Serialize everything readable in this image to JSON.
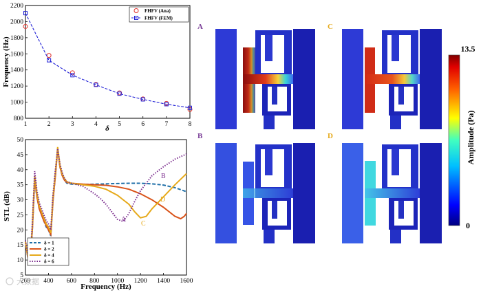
{
  "chart_data": [
    {
      "type": "line",
      "xlabel": "δ",
      "ylabel": "Frequency (Hz)",
      "xlim": [
        1,
        8
      ],
      "ylim": [
        800,
        2200
      ],
      "xticks": [
        1,
        2,
        3,
        4,
        5,
        6,
        7,
        8
      ],
      "yticks": [
        800,
        1000,
        1200,
        1400,
        1600,
        1800,
        2000,
        2200
      ],
      "series": [
        {
          "name": "FHFV (Ana)",
          "x": [
            1,
            2,
            3,
            4,
            5,
            6,
            7,
            8
          ],
          "values": [
            1940,
            1580,
            1365,
            1220,
            1115,
            1040,
            985,
            910
          ],
          "color": "#e0302c",
          "marker": "circle"
        },
        {
          "name": "FHFV (FEM)",
          "x": [
            1,
            2,
            3,
            4,
            5,
            6,
            7,
            8
          ],
          "values": [
            2105,
            1520,
            1335,
            1215,
            1105,
            1035,
            975,
            930
          ],
          "color": "#1f1fd6",
          "marker": "square",
          "dash": true
        }
      ]
    },
    {
      "type": "line",
      "xlabel": "Frequency (Hz)",
      "ylabel": "STL (dB)",
      "xlim": [
        200,
        1600
      ],
      "ylim": [
        5,
        50
      ],
      "xticks": [
        200,
        400,
        600,
        800,
        1000,
        1200,
        1400,
        1600
      ],
      "yticks": [
        5,
        10,
        15,
        20,
        25,
        30,
        35,
        40,
        45,
        50
      ],
      "series": [
        {
          "name": "δ = 1",
          "color": "#1f6fa8",
          "style": "dash",
          "x": [
            200,
            220,
            240,
            260,
            280,
            300,
            320,
            340,
            360,
            380,
            400,
            420,
            440,
            460,
            480,
            500,
            520,
            540,
            560,
            600,
            700,
            800,
            900,
            1000,
            1100,
            1200,
            1300,
            1400,
            1500,
            1600
          ],
          "values": [
            16,
            11,
            9.6,
            20,
            36,
            31,
            27,
            25,
            23,
            21,
            20,
            18,
            30,
            38,
            47,
            41,
            38,
            36.5,
            35.5,
            35.2,
            35.1,
            35.2,
            35.3,
            35.4,
            35.5,
            35.5,
            35.3,
            34.9,
            34,
            32.7
          ]
        },
        {
          "name": "δ = 2",
          "color": "#d95319",
          "style": "solid",
          "x": [
            200,
            220,
            240,
            260,
            280,
            300,
            320,
            340,
            360,
            380,
            400,
            420,
            440,
            460,
            480,
            500,
            520,
            540,
            560,
            600,
            700,
            800,
            900,
            1000,
            1100,
            1200,
            1300,
            1400,
            1500,
            1550,
            1580,
            1600
          ],
          "values": [
            16,
            11,
            9.8,
            20,
            37,
            31,
            27,
            25,
            23,
            21.5,
            20,
            18.5,
            30,
            38,
            47,
            41,
            38,
            36.5,
            35.8,
            35.5,
            35.2,
            35,
            34.8,
            34.3,
            33.5,
            32,
            30,
            27.5,
            24.5,
            23.7,
            24.5,
            25.5
          ]
        },
        {
          "name": "δ = 4",
          "color": "#e6a91a",
          "style": "solid",
          "x": [
            200,
            220,
            240,
            260,
            280,
            300,
            320,
            340,
            360,
            380,
            400,
            420,
            440,
            460,
            480,
            500,
            520,
            540,
            560,
            600,
            700,
            800,
            900,
            1000,
            1050,
            1100,
            1150,
            1200,
            1250,
            1300,
            1400,
            1500,
            1600
          ],
          "values": [
            16,
            11.5,
            9.9,
            21,
            38,
            32,
            28,
            26,
            24,
            22,
            21,
            19,
            31,
            39,
            47.5,
            41.5,
            38.5,
            37,
            36,
            35.5,
            35,
            34.5,
            33.5,
            31.5,
            30,
            28.5,
            26,
            24,
            24.5,
            27,
            31,
            35,
            38.7
          ]
        },
        {
          "name": "δ = 6",
          "color": "#7b2d8e",
          "style": "dot",
          "x": [
            200,
            220,
            240,
            260,
            280,
            300,
            320,
            340,
            360,
            380,
            400,
            420,
            440,
            460,
            480,
            500,
            520,
            540,
            560,
            600,
            700,
            800,
            850,
            900,
            950,
            1000,
            1050,
            1100,
            1150,
            1200,
            1300,
            1400,
            1500,
            1600
          ],
          "values": [
            16.5,
            12,
            10,
            22,
            39.5,
            33,
            29,
            27,
            25,
            23,
            22,
            20,
            32,
            40,
            47,
            42,
            39,
            37,
            36,
            35.5,
            34.5,
            32,
            30.5,
            28.5,
            26,
            23.5,
            22.8,
            25.5,
            29.5,
            33,
            38,
            41,
            43.5,
            45.2
          ]
        }
      ],
      "annotations": [
        {
          "text": "A",
          "color": "#7b2d8e"
        },
        {
          "text": "B",
          "color": "#7b2d8e"
        },
        {
          "text": "C",
          "color": "#e6a91a"
        },
        {
          "text": "D",
          "color": "#e6a91a"
        }
      ]
    }
  ],
  "panels": [
    "A",
    "B",
    "C",
    "D"
  ],
  "colorbar": {
    "max_label": "13.5",
    "min_label": "0",
    "title": "Amplitude  (Pa)"
  },
  "watermark": "大数据"
}
